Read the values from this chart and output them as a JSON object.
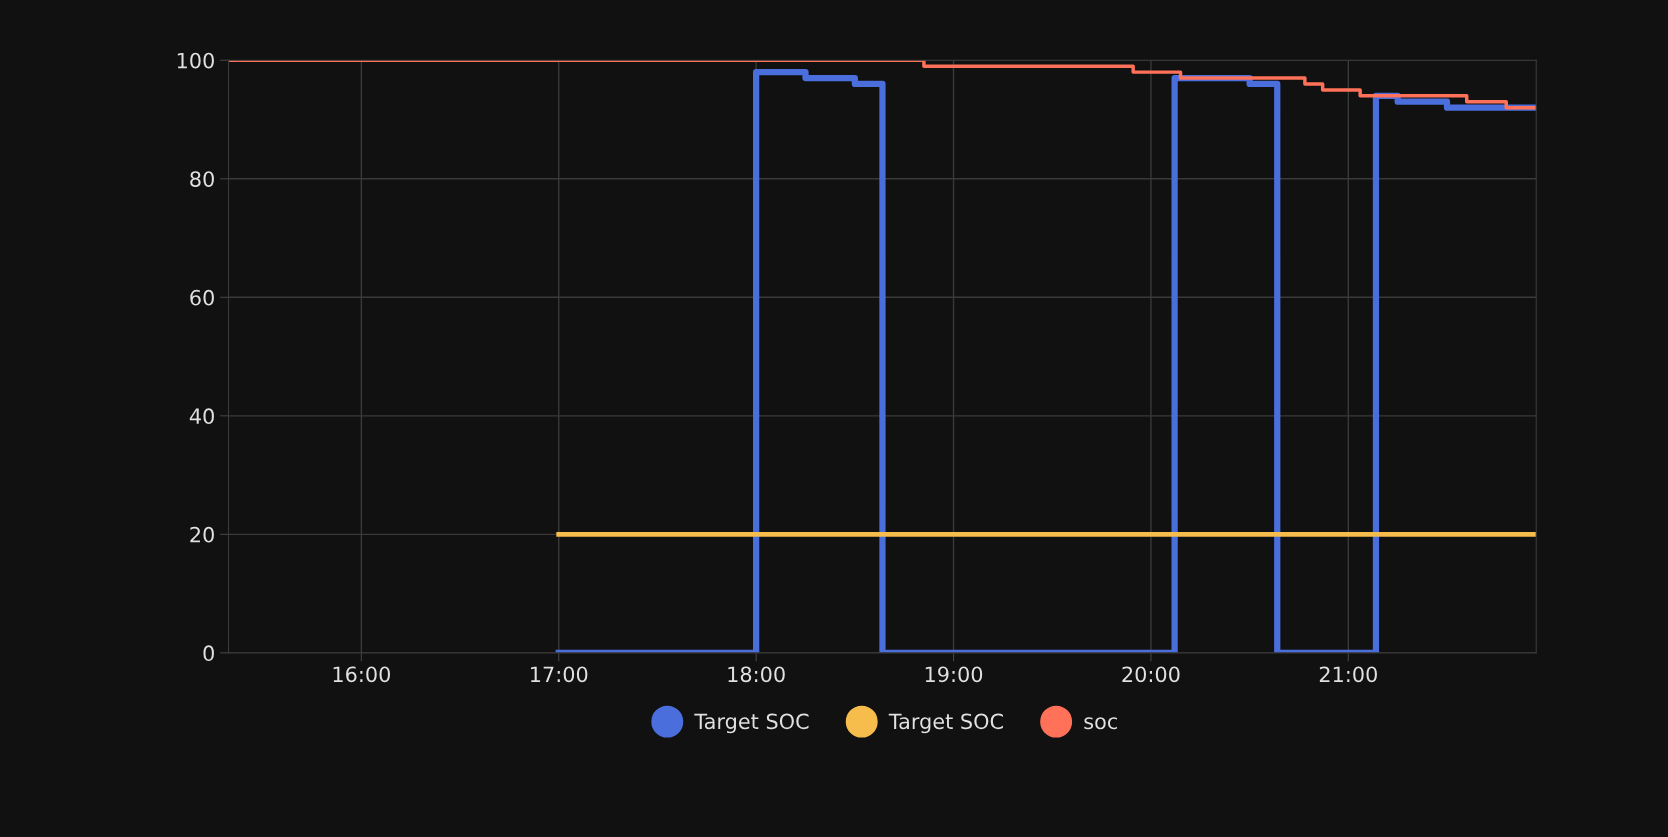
{
  "chart_data": {
    "type": "step",
    "xlim": [
      15.327,
      21.952
    ],
    "ylim": [
      0,
      100
    ],
    "xticks": [
      {
        "value": 16,
        "label": "16:00"
      },
      {
        "value": 17,
        "label": "17:00"
      },
      {
        "value": 18,
        "label": "18:00"
      },
      {
        "value": 19,
        "label": "19:00"
      },
      {
        "value": 20,
        "label": "20:00"
      },
      {
        "value": 21,
        "label": "21:00"
      }
    ],
    "yticks": [
      0,
      20,
      40,
      60,
      80,
      100
    ],
    "grid": true,
    "legend": "bottom",
    "series": [
      {
        "name": "Target SOC",
        "color": "#4a6fdc",
        "x": [
          17.0,
          18.0,
          18.25,
          18.5,
          18.64,
          20.12,
          20.5,
          20.64,
          21.14,
          21.25,
          21.5,
          21.952
        ],
        "values": [
          0,
          98,
          97,
          96,
          0,
          97,
          96,
          0,
          94,
          93,
          92,
          92
        ]
      },
      {
        "name": "Target SOC",
        "color": "#f6bd4c",
        "x": [
          17.0,
          21.952
        ],
        "values": [
          20,
          20
        ]
      },
      {
        "name": "soc",
        "color": "#ff7158",
        "x": [
          15.327,
          18.85,
          19.91,
          20.15,
          20.78,
          20.87,
          21.06,
          21.6,
          21.8,
          21.952
        ],
        "values": [
          100,
          99,
          98,
          97,
          96,
          95,
          94,
          93,
          92,
          92
        ]
      }
    ]
  }
}
